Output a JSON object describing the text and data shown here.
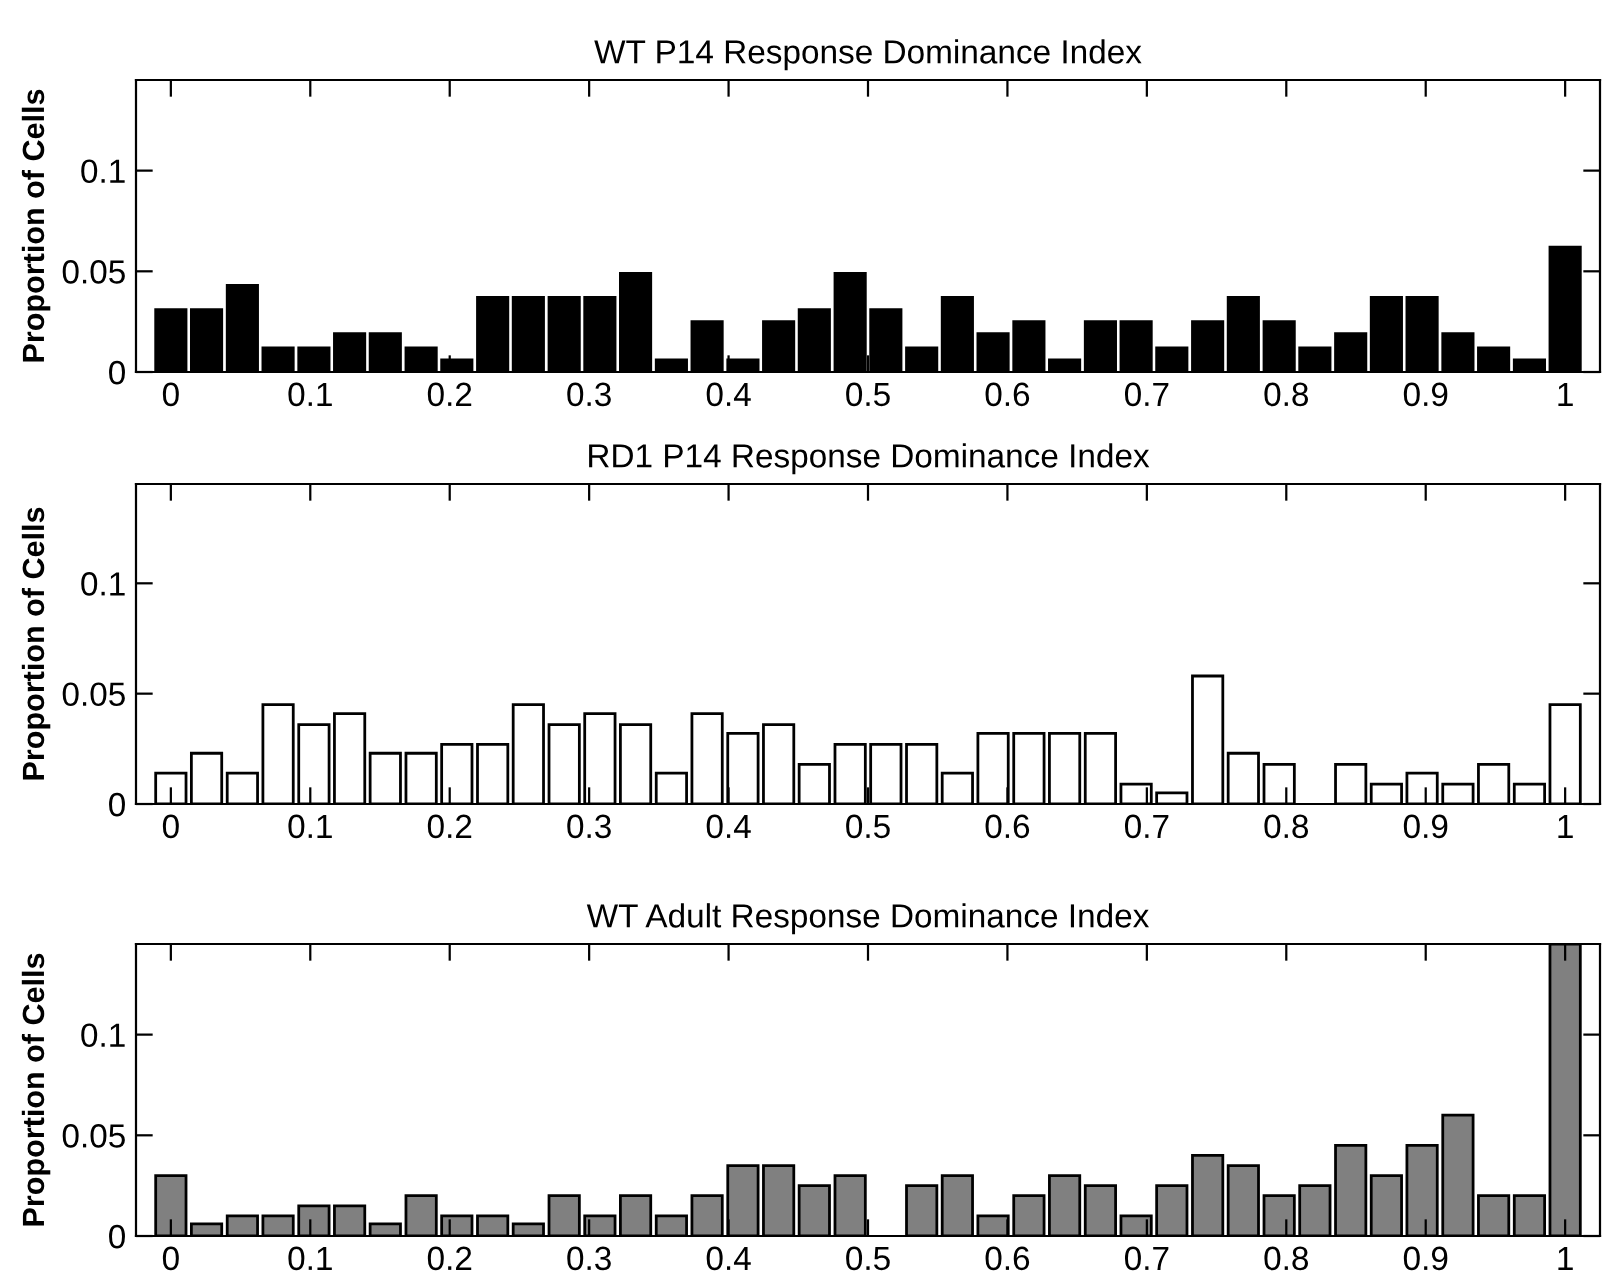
{
  "chart_data": [
    {
      "type": "bar",
      "title": "WT P14 Response Dominance Index",
      "ylabel": "Proportion of Cells",
      "x": [
        0,
        0.0256,
        0.0513,
        0.0769,
        0.1026,
        0.1282,
        0.1538,
        0.1795,
        0.2051,
        0.2308,
        0.2564,
        0.2821,
        0.3077,
        0.3333,
        0.359,
        0.3846,
        0.4103,
        0.4359,
        0.4615,
        0.4872,
        0.5128,
        0.5385,
        0.5641,
        0.5897,
        0.6154,
        0.641,
        0.6667,
        0.6923,
        0.7179,
        0.7436,
        0.7692,
        0.7949,
        0.8205,
        0.8462,
        0.8718,
        0.8974,
        0.9231,
        0.9487,
        0.9744,
        1
      ],
      "series": [
        {
          "color": "#000000",
          "values": [
            0.031,
            0.031,
            0.043,
            0.012,
            0.012,
            0.019,
            0.019,
            0.012,
            0.006,
            0.037,
            0.037,
            0.037,
            0.037,
            0.049,
            0.006,
            0.025,
            0.006,
            0.025,
            0.031,
            0.049,
            0.031,
            0.012,
            0.037,
            0.019,
            0.025,
            0.006,
            0.025,
            0.025,
            0.012,
            0.025,
            0.037,
            0.025,
            0.012,
            0.019,
            0.037,
            0.037,
            0.019,
            0.012,
            0.006,
            0.062
          ]
        }
      ],
      "xlim": [
        -0.025,
        1.025
      ],
      "ylim": [
        0,
        0.145
      ],
      "xticks": [
        0,
        0.1,
        0.2,
        0.3,
        0.4,
        0.5,
        0.6,
        0.7,
        0.8,
        0.9,
        1
      ],
      "yticks": [
        0,
        0.05,
        0.1
      ],
      "grid": false,
      "legend": false
    },
    {
      "type": "bar",
      "title": "RD1 P14 Response Dominance Index",
      "ylabel": "Proportion of Cells",
      "x": [
        0,
        0.0256,
        0.0513,
        0.0769,
        0.1026,
        0.1282,
        0.1538,
        0.1795,
        0.2051,
        0.2308,
        0.2564,
        0.2821,
        0.3077,
        0.3333,
        0.359,
        0.3846,
        0.4103,
        0.4359,
        0.4615,
        0.4872,
        0.5128,
        0.5385,
        0.5641,
        0.5897,
        0.6154,
        0.641,
        0.6667,
        0.6923,
        0.7179,
        0.7436,
        0.7692,
        0.7949,
        0.8205,
        0.8462,
        0.8718,
        0.8974,
        0.9231,
        0.9487,
        0.9744,
        1
      ],
      "series": [
        {
          "color": "#ffffff",
          "values": [
            0.014,
            0.023,
            0.014,
            0.045,
            0.036,
            0.041,
            0.023,
            0.023,
            0.027,
            0.027,
            0.045,
            0.036,
            0.041,
            0.036,
            0.014,
            0.041,
            0.032,
            0.036,
            0.018,
            0.027,
            0.027,
            0.027,
            0.014,
            0.032,
            0.032,
            0.032,
            0.032,
            0.009,
            0.005,
            0.058,
            0.023,
            0.018,
            0,
            0.018,
            0.009,
            0.014,
            0.009,
            0.018,
            0.009,
            0.045
          ]
        }
      ],
      "xlim": [
        -0.025,
        1.025
      ],
      "ylim": [
        0,
        0.145
      ],
      "xticks": [
        0,
        0.1,
        0.2,
        0.3,
        0.4,
        0.5,
        0.6,
        0.7,
        0.8,
        0.9,
        1
      ],
      "yticks": [
        0,
        0.05,
        0.1
      ],
      "grid": false,
      "legend": false
    },
    {
      "type": "bar",
      "title": "WT Adult Response Dominance Index",
      "ylabel": "Proportion of Cells",
      "x": [
        0,
        0.0256,
        0.0513,
        0.0769,
        0.1026,
        0.1282,
        0.1538,
        0.1795,
        0.2051,
        0.2308,
        0.2564,
        0.2821,
        0.3077,
        0.3333,
        0.359,
        0.3846,
        0.4103,
        0.4359,
        0.4615,
        0.4872,
        0.5128,
        0.5385,
        0.5641,
        0.5897,
        0.6154,
        0.641,
        0.6667,
        0.6923,
        0.7179,
        0.7436,
        0.7692,
        0.7949,
        0.8205,
        0.8462,
        0.8718,
        0.8974,
        0.9231,
        0.9487,
        0.9744,
        1
      ],
      "series": [
        {
          "color": "#808080",
          "values": [
            0.03,
            0.006,
            0.01,
            0.01,
            0.015,
            0.015,
            0.006,
            0.02,
            0.01,
            0.01,
            0.006,
            0.02,
            0.01,
            0.02,
            0.01,
            0.02,
            0.035,
            0.035,
            0.025,
            0.03,
            0,
            0.025,
            0.03,
            0.01,
            0.02,
            0.03,
            0.025,
            0.01,
            0.025,
            0.04,
            0.035,
            0.02,
            0.025,
            0.045,
            0.03,
            0.045,
            0.06,
            0.02,
            0.02,
            0.145
          ]
        }
      ],
      "xlim": [
        -0.025,
        1.025
      ],
      "ylim": [
        0,
        0.145
      ],
      "xticks": [
        0,
        0.1,
        0.2,
        0.3,
        0.4,
        0.5,
        0.6,
        0.7,
        0.8,
        0.9,
        1
      ],
      "yticks": [
        0,
        0.05,
        0.1
      ],
      "grid": false,
      "legend": false
    }
  ]
}
